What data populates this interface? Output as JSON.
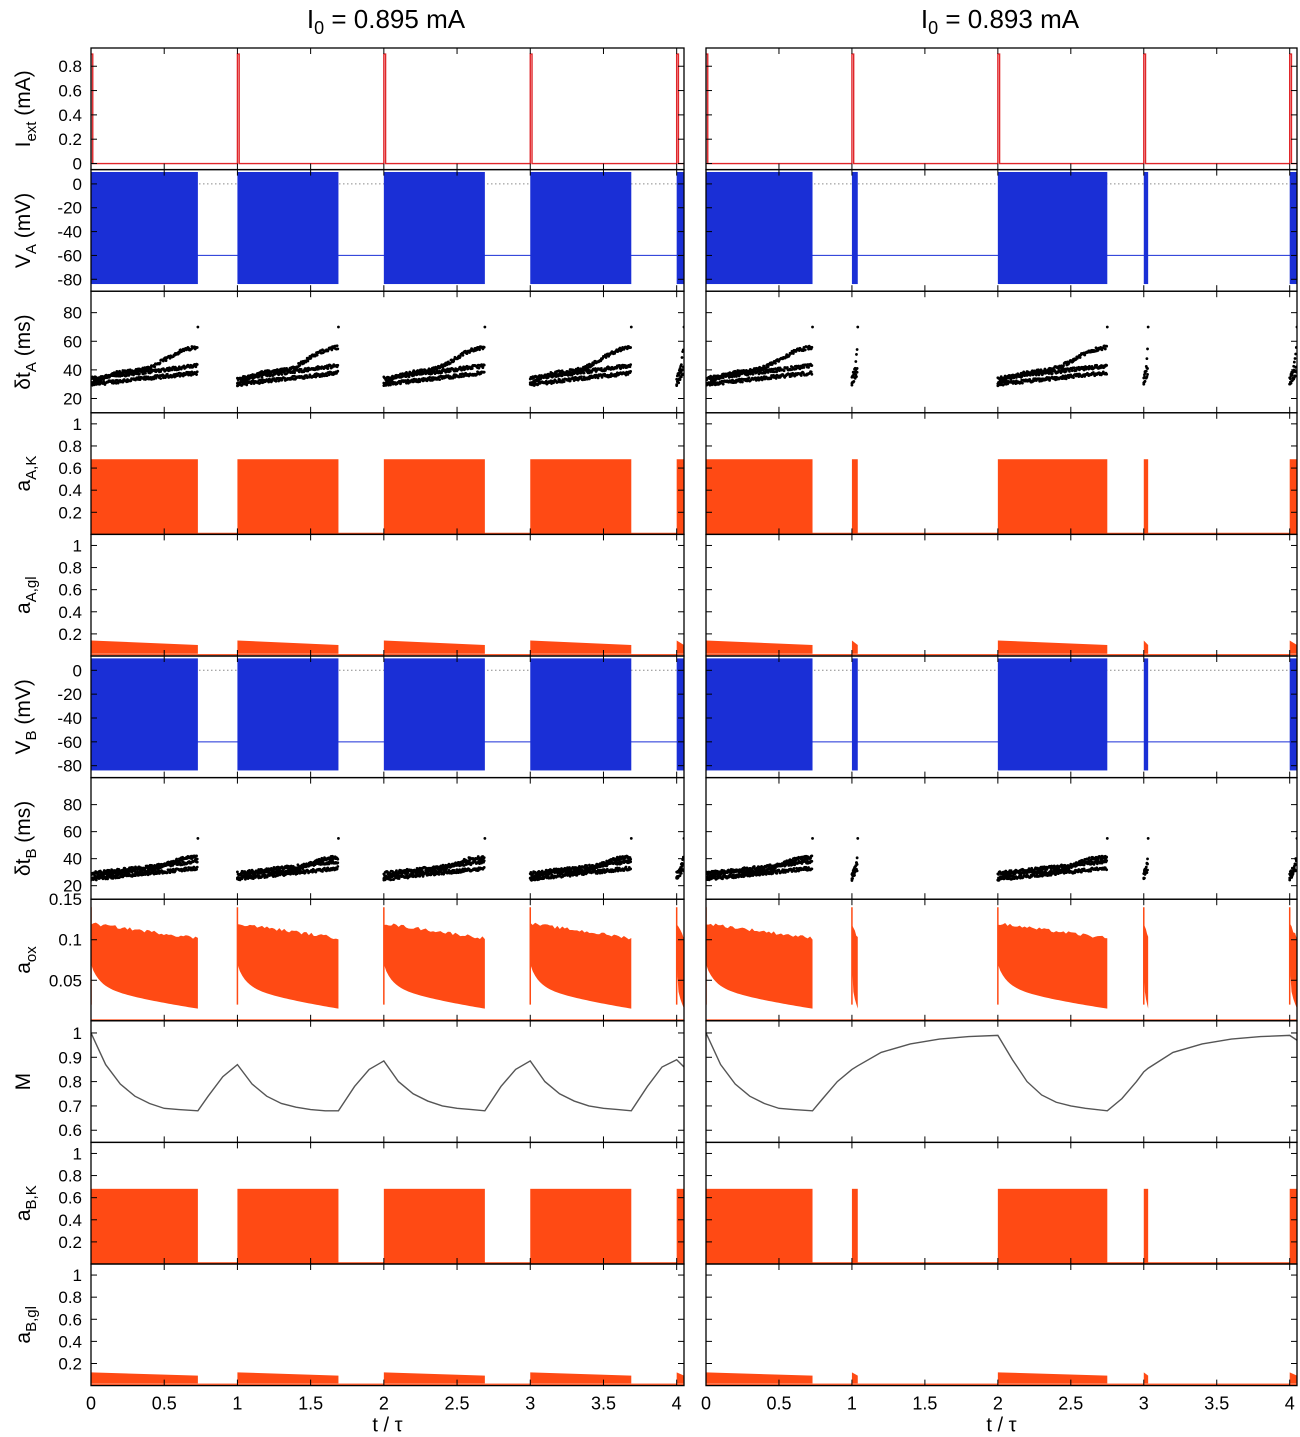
{
  "columns": [
    {
      "title_prefix": "I",
      "title_sub": "0",
      "title_suffix": " = 0.895 mA"
    },
    {
      "title_prefix": "I",
      "title_sub": "0",
      "title_suffix": " = 0.893 mA"
    }
  ],
  "colors": {
    "current": "#e0262a",
    "voltage": "#1a2fd6",
    "activation": "#ff4a14",
    "spikes": "#000000",
    "M": "#555555",
    "reference_line": "#8a8a8a"
  },
  "chart_data": {
    "type": "line",
    "x": {
      "label": "t / τ",
      "range": [
        0,
        4.05
      ],
      "ticks": [
        0,
        0.5,
        1,
        1.5,
        2,
        2.5,
        3,
        3.5,
        4
      ],
      "tick_labels": [
        "0",
        "0.5",
        "1",
        "1.5",
        "2",
        "2.5",
        "3",
        "3.5",
        "4"
      ]
    },
    "panels": [
      {
        "key": "Iext",
        "ylabel": "I",
        "ylabel_sub": "ext",
        "ylabel_suffix": " (mA)",
        "ylim": [
          -0.05,
          0.95
        ],
        "ticks": [
          0,
          0.2,
          0.4,
          0.6,
          0.8
        ],
        "tick_labels": [
          "0",
          "0.2",
          "0.4",
          "0.6",
          "0.8"
        ]
      },
      {
        "key": "VA",
        "ylabel": "V",
        "ylabel_sub": "A",
        "ylabel_suffix": " (mV)",
        "ylim": [
          -90,
          12
        ],
        "ticks": [
          0,
          -20,
          -40,
          -60,
          -80
        ],
        "tick_labels": [
          "0",
          "-20",
          "-40",
          "-60",
          "-80"
        ],
        "reference": 0,
        "rest_value": -60,
        "spike_range": [
          -84,
          10
        ]
      },
      {
        "key": "dtA",
        "ylabel": "δt",
        "ylabel_sub": "A",
        "ylabel_suffix": " (ms)",
        "ylim": [
          10,
          95
        ],
        "ticks": [
          20,
          40,
          60,
          80
        ],
        "tick_labels": [
          "20",
          "40",
          "60",
          "80"
        ]
      },
      {
        "key": "aAK",
        "ylabel": "a",
        "ylabel_sub": "A,K",
        "ylabel_suffix": "",
        "ylim": [
          0,
          1.1
        ],
        "ticks": [
          0.2,
          0.4,
          0.6,
          0.8,
          1
        ],
        "tick_labels": [
          "0.2",
          "0.4",
          "0.6",
          "0.8",
          "1"
        ],
        "burst_range": [
          0,
          0.68
        ]
      },
      {
        "key": "aAgl",
        "ylabel": "a",
        "ylabel_sub": "A,gl",
        "ylabel_suffix": "",
        "ylim": [
          0,
          1.1
        ],
        "ticks": [
          0.2,
          0.4,
          0.6,
          0.8,
          1
        ],
        "tick_labels": [
          "0.2",
          "0.4",
          "0.6",
          "0.8",
          "1"
        ],
        "burst_top": [
          0.14,
          0.1
        ],
        "burst_bottom": 0.02
      },
      {
        "key": "VB",
        "ylabel": "V",
        "ylabel_sub": "B",
        "ylabel_suffix": " (mV)",
        "ylim": [
          -90,
          12
        ],
        "ticks": [
          0,
          -20,
          -40,
          -60,
          -80
        ],
        "tick_labels": [
          "0",
          "-20",
          "-40",
          "-60",
          "-80"
        ],
        "reference": 0,
        "rest_value": -60,
        "spike_range": [
          -84,
          10
        ]
      },
      {
        "key": "dtB",
        "ylabel": "δt",
        "ylabel_sub": "B",
        "ylabel_suffix": " (ms)",
        "ylim": [
          10,
          100
        ],
        "ticks": [
          20,
          40,
          60,
          80
        ],
        "tick_labels": [
          "20",
          "40",
          "60",
          "80"
        ]
      },
      {
        "key": "aox",
        "ylabel": "a",
        "ylabel_sub": "ox",
        "ylabel_suffix": "",
        "ylim": [
          0,
          0.15
        ],
        "ticks": [
          0.05,
          0.1,
          0.15
        ],
        "tick_labels": [
          "0.05",
          "0.1",
          "0.15"
        ],
        "reference": 0.0
      },
      {
        "key": "M",
        "ylabel": "M",
        "ylabel_sub": "",
        "ylabel_suffix": "",
        "ylim": [
          0.55,
          1.05
        ],
        "ticks": [
          0.6,
          0.7,
          0.8,
          0.9,
          1
        ],
        "tick_labels": [
          "0.6",
          "0.7",
          "0.8",
          "0.9",
          "1"
        ]
      },
      {
        "key": "aBK",
        "ylabel": "a",
        "ylabel_sub": "B,K",
        "ylabel_suffix": "",
        "ylim": [
          0,
          1.1
        ],
        "ticks": [
          0.2,
          0.4,
          0.6,
          0.8,
          1
        ],
        "tick_labels": [
          "0.2",
          "0.4",
          "0.6",
          "0.8",
          "1"
        ],
        "burst_range": [
          0,
          0.68
        ]
      },
      {
        "key": "aBgl",
        "ylabel": "a",
        "ylabel_sub": "B,gl",
        "ylabel_suffix": "",
        "ylim": [
          0,
          1.1
        ],
        "ticks": [
          0.2,
          0.4,
          0.6,
          0.8,
          1
        ],
        "tick_labels": [
          "0.2",
          "0.4",
          "0.6",
          "0.8",
          "1"
        ],
        "burst_top": [
          0.12,
          0.09
        ],
        "burst_bottom": 0.02
      }
    ],
    "series": [
      {
        "column": 0,
        "pulse_times": [
          0,
          1,
          2,
          3,
          4
        ],
        "pulse_amplitude": 0.9,
        "bursts": [
          {
            "start": 0,
            "end": 0.73
          },
          {
            "start": 1,
            "end": 1.69
          },
          {
            "start": 2,
            "end": 2.69
          },
          {
            "start": 3,
            "end": 3.69
          },
          {
            "start": 4,
            "end": 4.05
          }
        ],
        "M": {
          "t": [
            0,
            0.1,
            0.2,
            0.3,
            0.4,
            0.5,
            0.6,
            0.73,
            0.8,
            0.9,
            1.0,
            1.1,
            1.2,
            1.3,
            1.4,
            1.5,
            1.6,
            1.69,
            1.8,
            1.9,
            2.0,
            2.1,
            2.2,
            2.3,
            2.4,
            2.5,
            2.6,
            2.69,
            2.8,
            2.9,
            3.0,
            3.1,
            3.2,
            3.3,
            3.4,
            3.5,
            3.6,
            3.69,
            3.8,
            3.9,
            4.0,
            4.05
          ],
          "values": [
            1.0,
            0.87,
            0.79,
            0.74,
            0.71,
            0.69,
            0.685,
            0.68,
            0.74,
            0.82,
            0.87,
            0.79,
            0.74,
            0.71,
            0.695,
            0.685,
            0.68,
            0.68,
            0.78,
            0.85,
            0.885,
            0.8,
            0.75,
            0.72,
            0.7,
            0.69,
            0.685,
            0.68,
            0.78,
            0.85,
            0.885,
            0.8,
            0.75,
            0.72,
            0.7,
            0.69,
            0.685,
            0.68,
            0.78,
            0.86,
            0.89,
            0.86
          ]
        }
      },
      {
        "column": 1,
        "pulse_times": [
          0,
          1,
          2,
          3,
          4
        ],
        "pulse_amplitude": 0.9,
        "bursts": [
          {
            "start": 0,
            "end": 0.73
          },
          {
            "start": 1,
            "end": 1.04
          },
          {
            "start": 2,
            "end": 2.75
          },
          {
            "start": 3,
            "end": 3.03
          },
          {
            "start": 4,
            "end": 4.05
          }
        ],
        "M": {
          "t": [
            0,
            0.1,
            0.2,
            0.3,
            0.4,
            0.5,
            0.6,
            0.73,
            0.8,
            0.9,
            1.0,
            1.04,
            1.2,
            1.4,
            1.6,
            1.8,
            2.0,
            2.1,
            2.2,
            2.3,
            2.4,
            2.5,
            2.6,
            2.75,
            2.85,
            2.95,
            3.0,
            3.03,
            3.2,
            3.4,
            3.6,
            3.8,
            4.0,
            4.05
          ],
          "values": [
            1.0,
            0.87,
            0.79,
            0.74,
            0.71,
            0.69,
            0.685,
            0.68,
            0.73,
            0.8,
            0.85,
            0.865,
            0.92,
            0.955,
            0.975,
            0.985,
            0.99,
            0.89,
            0.8,
            0.745,
            0.715,
            0.7,
            0.69,
            0.68,
            0.73,
            0.8,
            0.84,
            0.855,
            0.92,
            0.955,
            0.975,
            0.985,
            0.99,
            0.97
          ]
        }
      }
    ]
  }
}
